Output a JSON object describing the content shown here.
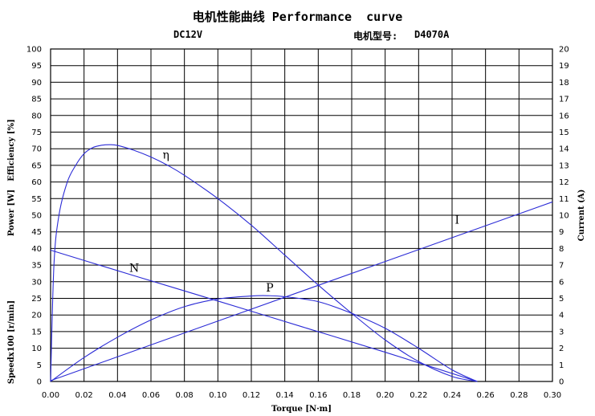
{
  "header": {
    "title": "电机性能曲线 Performance  curve",
    "voltage": "DC12V",
    "model_label": "电机型号:",
    "model_value": "D4070A"
  },
  "colors": {
    "curve": "#2b2bd6",
    "grid": "#000000",
    "background": "#ffffff"
  },
  "chart_data": {
    "type": "line",
    "xlabel": "Torque [N·m]",
    "ylabel_left_parts": [
      "Speedx100 [r/min]",
      "Power [W]",
      "Efficiency [%]"
    ],
    "ylabel_right": "Current (A)",
    "xlim": [
      0,
      0.3
    ],
    "ylim_left": [
      0,
      100
    ],
    "ylim_right": [
      0,
      20
    ],
    "x_ticks": [
      "0.00",
      "0.02",
      "0.04",
      "0.06",
      "0.08",
      "0.10",
      "0.12",
      "0.14",
      "0.16",
      "0.18",
      "0.20",
      "0.22",
      "0.24",
      "0.26",
      "0.28",
      "0.30"
    ],
    "y_left_ticks": [
      "0",
      "5",
      "10",
      "15",
      "20",
      "25",
      "30",
      "35",
      "40",
      "45",
      "50",
      "55",
      "60",
      "65",
      "70",
      "75",
      "80",
      "85",
      "90",
      "95",
      "100"
    ],
    "y_right_ticks": [
      "0",
      "1",
      "2",
      "3",
      "4",
      "5",
      "6",
      "7",
      "8",
      "9",
      "10",
      "11",
      "12",
      "13",
      "14",
      "15",
      "16",
      "17",
      "18",
      "19",
      "20"
    ],
    "grid": true,
    "series": [
      {
        "name": "η",
        "axis": "left",
        "x": [
          0,
          0.002,
          0.005,
          0.01,
          0.015,
          0.02,
          0.025,
          0.03,
          0.035,
          0.04,
          0.05,
          0.06,
          0.07,
          0.08,
          0.1,
          0.12,
          0.14,
          0.16,
          0.18,
          0.2,
          0.22,
          0.24,
          0.255
        ],
        "y": [
          0,
          35,
          50,
          60,
          65,
          68.5,
          70.3,
          71,
          71.2,
          71,
          69.5,
          67.5,
          65,
          62,
          55,
          47,
          38,
          29,
          20.5,
          12.5,
          6,
          1.5,
          0
        ]
      },
      {
        "name": "N",
        "axis": "left",
        "x": [
          0,
          0.05,
          0.1,
          0.15,
          0.2,
          0.255
        ],
        "y": [
          39.5,
          31.8,
          24.2,
          16.5,
          8.8,
          0
        ]
      },
      {
        "name": "P",
        "axis": "left",
        "x": [
          0,
          0.02,
          0.04,
          0.06,
          0.08,
          0.1,
          0.12,
          0.13,
          0.14,
          0.16,
          0.18,
          0.2,
          0.22,
          0.24,
          0.255
        ],
        "y": [
          0,
          7.2,
          13.3,
          18.5,
          22.5,
          24.8,
          25.7,
          25.8,
          25.5,
          24,
          20.5,
          16,
          10,
          3.5,
          0
        ]
      },
      {
        "name": "I",
        "axis": "right",
        "x": [
          0,
          0.3
        ],
        "y": [
          0.05,
          10.8
        ]
      }
    ],
    "annotations": [
      {
        "text": "η",
        "x": 0.069,
        "y": 67
      },
      {
        "text": "N",
        "x": 0.05,
        "y": 33
      },
      {
        "text": "P",
        "x": 0.131,
        "y": 27
      },
      {
        "text": "I",
        "x": 0.243,
        "y": 47.5
      }
    ]
  }
}
